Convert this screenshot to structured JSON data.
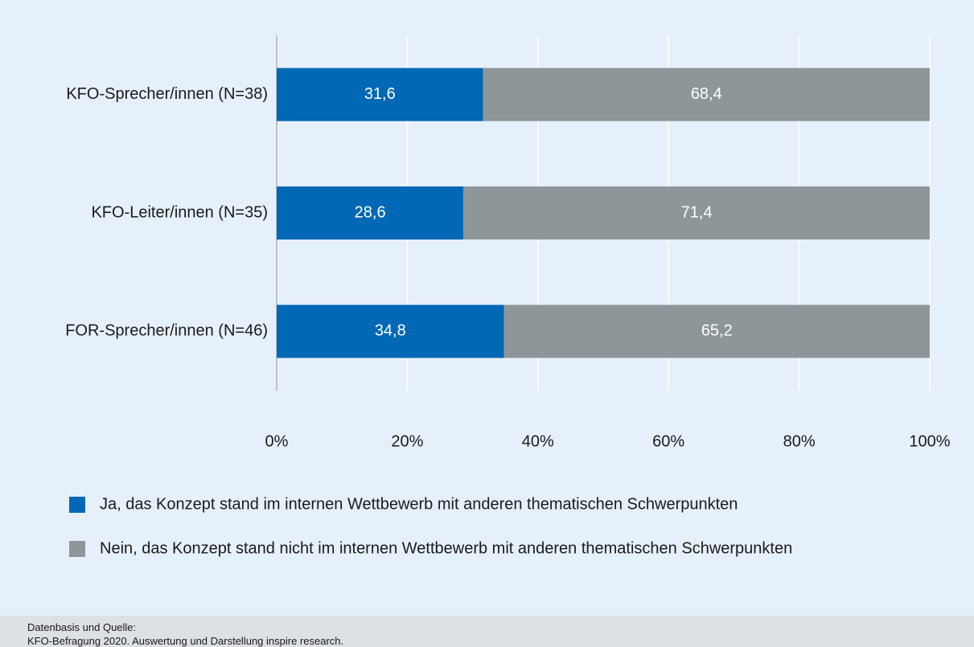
{
  "chart_data": {
    "type": "bar",
    "orientation": "horizontal",
    "stacked": true,
    "categories": [
      "KFO-Sprecher/innen (N=38)",
      "KFO-Leiter/innen (N=35)",
      "FOR-Sprecher/innen (N=46)"
    ],
    "series": [
      {
        "name": "Ja, das Konzept stand im internen Wettbewerb mit anderen thematischen Schwerpunkten",
        "color": "#0068b4",
        "values": [
          31.6,
          28.6,
          34.8
        ],
        "value_labels": [
          "31,6",
          "28,6",
          "34,8"
        ]
      },
      {
        "name": "Nein, das Konzept stand nicht im internen Wettbewerb mit anderen thematischen Schwerpunkten",
        "color": "#8e9699",
        "values": [
          68.4,
          71.4,
          65.2
        ],
        "value_labels": [
          "68,4",
          "71,4",
          "65,2"
        ]
      }
    ],
    "xlim": [
      0,
      100
    ],
    "xticks": [
      {
        "value": 0,
        "label": "0%"
      },
      {
        "value": 20,
        "label": "20%"
      },
      {
        "value": 40,
        "label": "40%"
      },
      {
        "value": 60,
        "label": "60%"
      },
      {
        "value": 80,
        "label": "80%"
      },
      {
        "value": 100,
        "label": "100%"
      }
    ],
    "grid": true,
    "legend": "bottom",
    "source_title": "Datenbasis und Quelle:",
    "source": "KFO-Befragung 2020. Auswertung und Darstellung inspire research."
  }
}
